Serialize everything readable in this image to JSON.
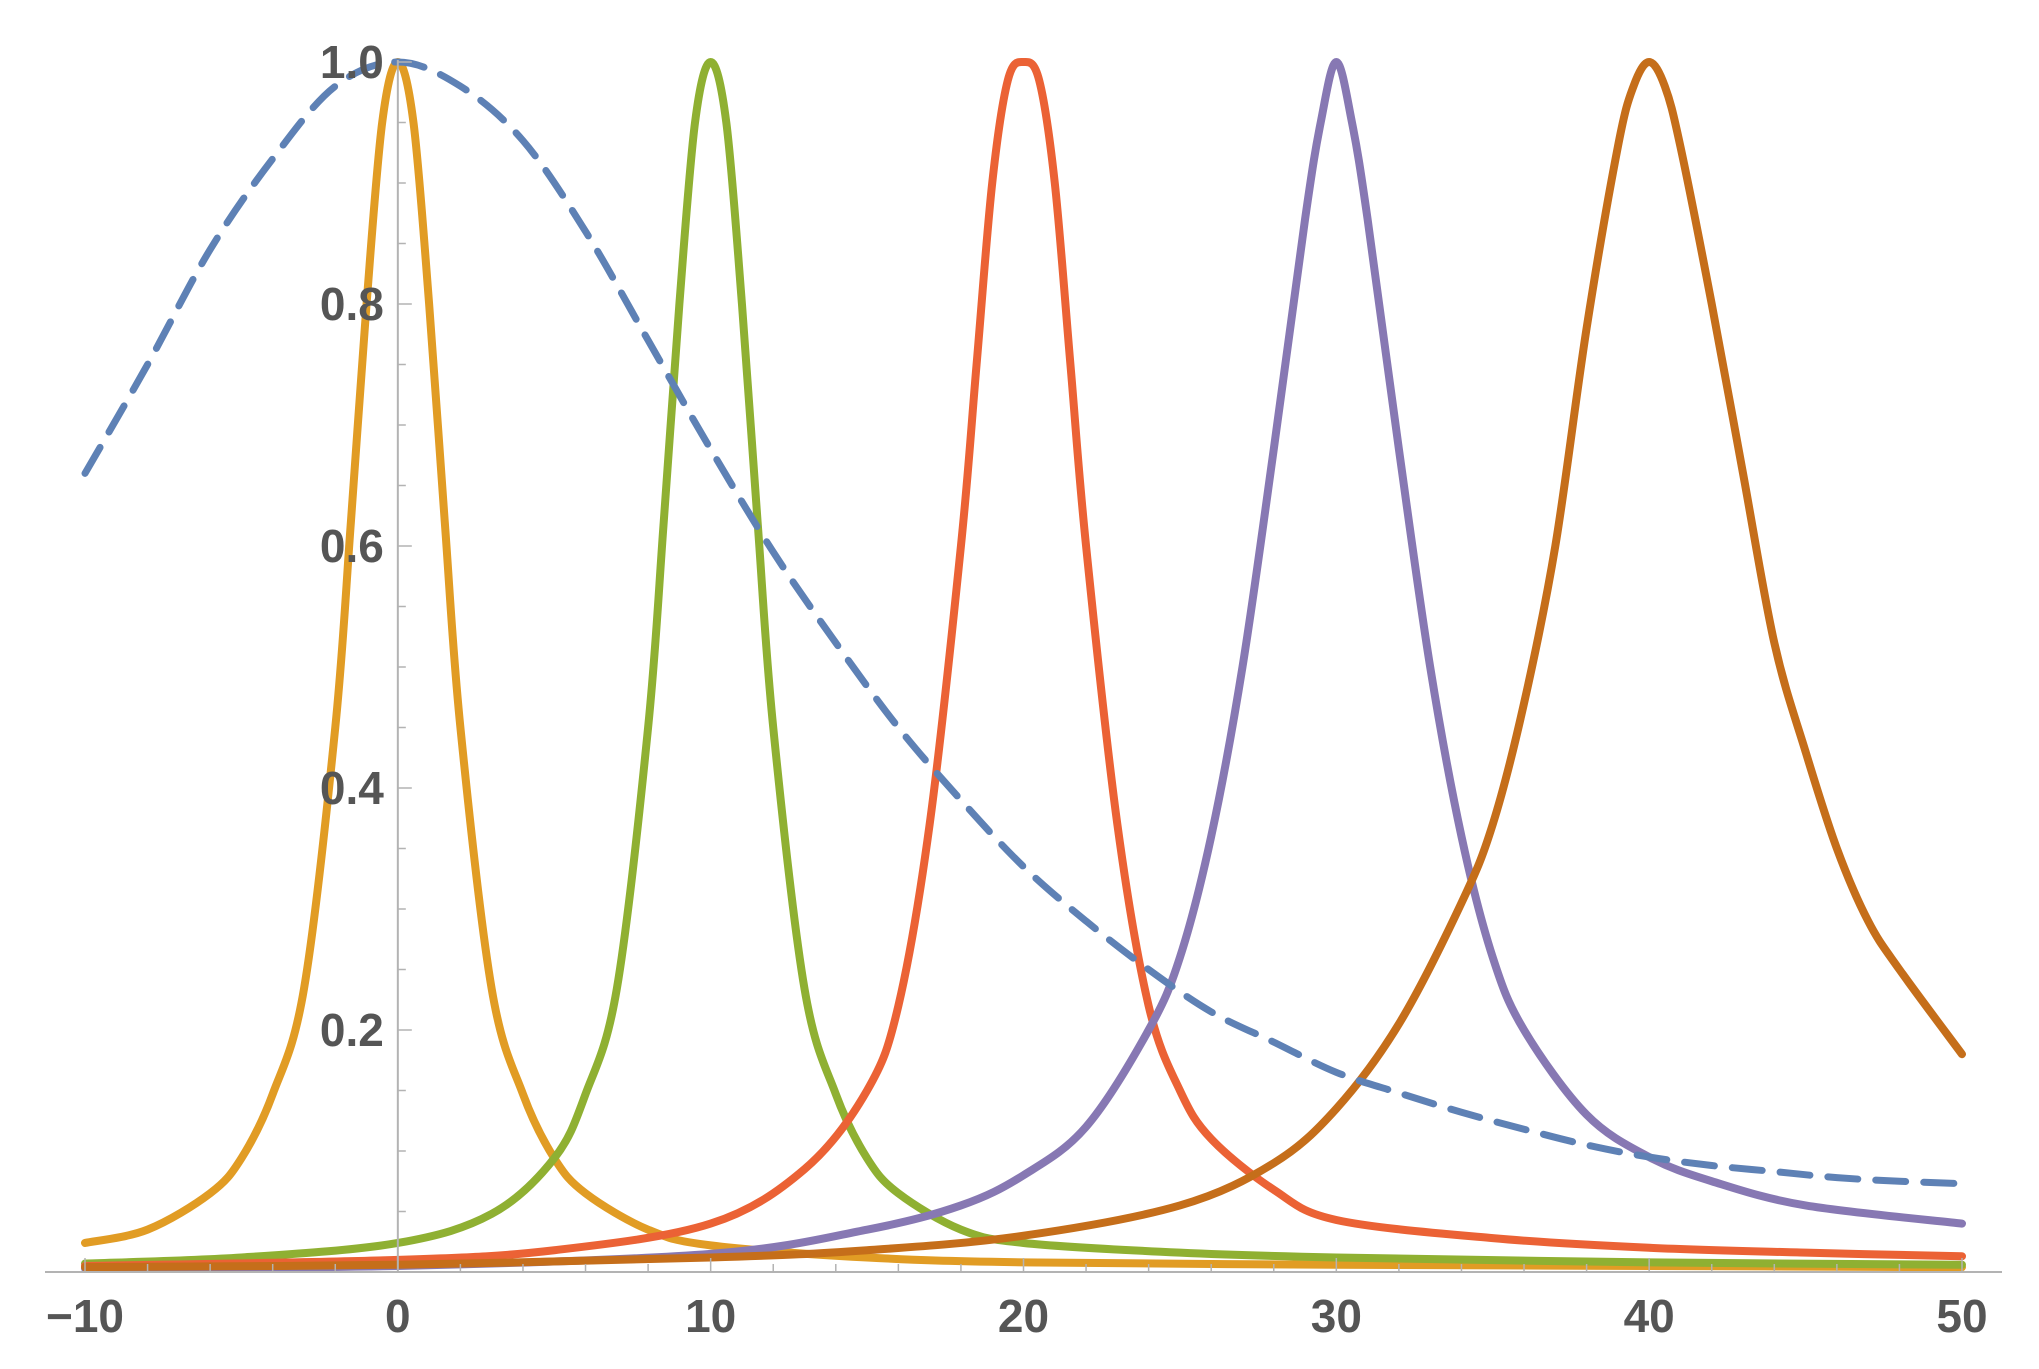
{
  "chart_data": {
    "type": "line",
    "title": "",
    "xlabel": "",
    "ylabel": "",
    "xlim": [
      -10,
      50
    ],
    "ylim": [
      0,
      1
    ],
    "grid": false,
    "legend": "none",
    "x_ticks": [
      {
        "value": -10,
        "label": "−10"
      },
      {
        "value": 0,
        "label": "0"
      },
      {
        "value": 10,
        "label": "10"
      },
      {
        "value": 20,
        "label": "20"
      },
      {
        "value": 30,
        "label": "30"
      },
      {
        "value": 40,
        "label": "40"
      },
      {
        "value": 50,
        "label": "50"
      }
    ],
    "y_ticks": [
      {
        "value": 0.2,
        "label": "0.2"
      },
      {
        "value": 0.4,
        "label": "0.4"
      },
      {
        "value": 0.6,
        "label": "0.6"
      },
      {
        "value": 0.8,
        "label": "0.8"
      },
      {
        "value": 1.0,
        "label": "1.0"
      }
    ],
    "series": [
      {
        "key": "dashed-broad",
        "style": "dashed",
        "color": "#5e81b5",
        "x": [
          -10,
          -8,
          -6,
          -4,
          -2,
          0,
          2,
          4,
          6,
          8,
          10,
          12,
          14,
          16,
          18,
          20,
          22,
          24,
          26,
          28,
          30,
          32,
          34,
          36,
          38,
          40,
          42,
          44,
          46,
          48,
          50
        ],
        "y": [
          0.66,
          0.75,
          0.845,
          0.92,
          0.98,
          1.0,
          0.98,
          0.935,
          0.86,
          0.77,
          0.68,
          0.595,
          0.52,
          0.45,
          0.39,
          0.335,
          0.29,
          0.25,
          0.215,
          0.19,
          0.165,
          0.148,
          0.132,
          0.118,
          0.105,
          0.095,
          0.088,
          0.083,
          0.078,
          0.075,
          0.073
        ]
      },
      {
        "key": "peak-0",
        "style": "solid",
        "color": "#e19c24",
        "x": [
          -10,
          -8,
          -6,
          -5,
          -4,
          -3,
          -2,
          -1.5,
          -1,
          -0.5,
          0,
          0.5,
          1,
          1.5,
          2,
          3,
          4,
          5,
          6,
          8,
          10,
          15,
          20,
          30,
          40,
          50
        ],
        "y": [
          0.024,
          0.035,
          0.065,
          0.094,
          0.147,
          0.234,
          0.45,
          0.62,
          0.8,
          0.95,
          1.0,
          0.95,
          0.8,
          0.62,
          0.45,
          0.234,
          0.147,
          0.094,
          0.065,
          0.035,
          0.022,
          0.012,
          0.008,
          0.006,
          0.005,
          0.004
        ]
      },
      {
        "key": "peak-10",
        "style": "solid",
        "color": "#8fb032",
        "x": [
          -10,
          -5,
          0,
          3,
          5,
          6,
          7,
          8,
          8.5,
          9,
          9.5,
          10,
          10.5,
          11,
          11.5,
          12,
          13,
          14,
          15,
          16,
          18,
          20,
          25,
          30,
          40,
          50
        ],
        "y": [
          0.007,
          0.012,
          0.024,
          0.048,
          0.094,
          0.147,
          0.234,
          0.45,
          0.62,
          0.8,
          0.95,
          1.0,
          0.95,
          0.8,
          0.62,
          0.45,
          0.234,
          0.147,
          0.094,
          0.065,
          0.035,
          0.024,
          0.016,
          0.012,
          0.008,
          0.006
        ]
      },
      {
        "key": "peak-20",
        "style": "solid",
        "color": "#eb6235",
        "x": [
          -10,
          0,
          5,
          10,
          13,
          15,
          16,
          17,
          18,
          18.5,
          19,
          19.5,
          20,
          20.5,
          21,
          21.5,
          22,
          23,
          24,
          25,
          26,
          28,
          30,
          35,
          40,
          45,
          50
        ],
        "y": [
          0.005,
          0.01,
          0.018,
          0.04,
          0.085,
          0.15,
          0.22,
          0.37,
          0.6,
          0.75,
          0.9,
          0.985,
          1.0,
          0.985,
          0.9,
          0.75,
          0.6,
          0.37,
          0.22,
          0.15,
          0.11,
          0.068,
          0.043,
          0.028,
          0.02,
          0.016,
          0.013
        ]
      },
      {
        "key": "peak-30",
        "style": "solid",
        "color": "#8778b3",
        "x": [
          -10,
          0,
          10,
          15,
          18,
          20,
          22,
          24,
          25,
          26,
          27,
          28,
          29,
          29.5,
          30,
          30.5,
          31,
          32,
          33,
          34,
          35,
          36,
          38,
          40,
          42,
          45,
          50
        ],
        "y": [
          0.003,
          0.005,
          0.015,
          0.035,
          0.055,
          0.08,
          0.12,
          0.2,
          0.26,
          0.36,
          0.5,
          0.68,
          0.87,
          0.95,
          1.0,
          0.95,
          0.87,
          0.68,
          0.5,
          0.36,
          0.26,
          0.2,
          0.13,
          0.095,
          0.075,
          0.055,
          0.04
        ]
      },
      {
        "key": "peak-40",
        "style": "solid",
        "color": "#c56e1a",
        "x": [
          -10,
          0,
          10,
          15,
          20,
          25,
          28,
          30,
          32,
          34,
          35,
          36,
          37,
          38,
          39,
          39.5,
          40,
          40.5,
          41,
          42,
          43,
          44,
          45,
          46,
          47,
          48,
          50
        ],
        "y": [
          0.004,
          0.006,
          0.012,
          0.018,
          0.03,
          0.055,
          0.09,
          0.135,
          0.205,
          0.305,
          0.37,
          0.47,
          0.6,
          0.78,
          0.93,
          0.98,
          1.0,
          0.98,
          0.93,
          0.8,
          0.66,
          0.52,
          0.43,
          0.35,
          0.29,
          0.25,
          0.18
        ]
      }
    ]
  }
}
